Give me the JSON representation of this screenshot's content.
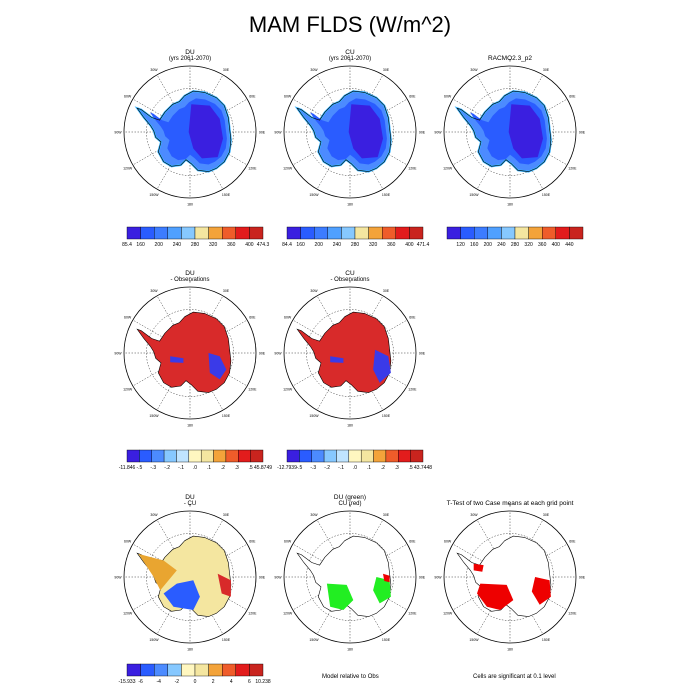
{
  "page": {
    "title": "MAM FLDS (W/m^2)"
  },
  "colors": {
    "ocean": "#ffffff",
    "antarctica_blue": "#2a5cff",
    "antarctica_deep": "#3a1fe0",
    "antarctica_light": "#4c8bff",
    "coast_cyan": "#39b4ff",
    "diff_red": "#d82a2a",
    "diff_blue": "#3a3ae8",
    "du_cu_yellow": "#f4e6a0",
    "du_cu_orange": "#e9a530",
    "sig_green": "#22ee22",
    "sig_red": "#ee0000"
  },
  "notes": {
    "model_relative": "Model relative to Obs",
    "cells_significant": "Cells are significant at 0.1 level"
  },
  "chart_data": [
    {
      "type": "heatmap",
      "id": "du",
      "title": "DU",
      "subtitle": "(yrs 2061-2070)",
      "colorbar": {
        "min_label": "85.4",
        "max_label": "474.3",
        "ticks": [
          "160",
          "200",
          "240",
          "280",
          "320",
          "360",
          "400"
        ],
        "colors": [
          "#3a1fe0",
          "#2a5cff",
          "#3c7cff",
          "#4fa0ff",
          "#86c8ff",
          "#f4e6a0",
          "#f3a33a",
          "#ef5c2a",
          "#e21c1c",
          "#c9241e"
        ]
      },
      "lon_labels": [
        "0",
        "30E",
        "60E",
        "90E",
        "120E",
        "150E",
        "180",
        "150W",
        "120W",
        "90W",
        "60W",
        "30W"
      ]
    },
    {
      "type": "heatmap",
      "id": "cu",
      "title": "CU",
      "subtitle": "(yrs 2061-2070)",
      "colorbar": {
        "min_label": "84.4",
        "max_label": "471.4",
        "ticks": [
          "160",
          "200",
          "240",
          "280",
          "320",
          "360",
          "400"
        ],
        "colors": [
          "#3a1fe0",
          "#2a5cff",
          "#3c7cff",
          "#4fa0ff",
          "#86c8ff",
          "#f4e6a0",
          "#f3a33a",
          "#ef5c2a",
          "#e21c1c",
          "#c9241e"
        ]
      },
      "lon_labels": [
        "0",
        "30E",
        "60E",
        "90E",
        "120E",
        "150E",
        "180",
        "150W",
        "120W",
        "90W",
        "60W",
        "30W"
      ]
    },
    {
      "type": "heatmap",
      "id": "racmo",
      "title": "RACMO2.3_p2",
      "subtitle": "",
      "colorbar": {
        "min_label": "",
        "max_label": "",
        "ticks": [
          "120",
          "160",
          "200",
          "240",
          "280",
          "320",
          "360",
          "400",
          "440"
        ],
        "colors": [
          "#3a1fe0",
          "#2a5cff",
          "#3c7cff",
          "#4fa0ff",
          "#86c8ff",
          "#f4e6a0",
          "#f3a33a",
          "#ef5c2a",
          "#e21c1c",
          "#c9241e"
        ]
      },
      "lon_labels": [
        "0",
        "30E",
        "60E",
        "90E",
        "120E",
        "150E",
        "180",
        "150W",
        "120W",
        "90W",
        "60W",
        "30W"
      ]
    },
    {
      "type": "heatmap",
      "id": "du_obs",
      "title": "DU",
      "subtitle": "- Observations",
      "colorbar": {
        "min_label": "-11.846",
        "max_label": "45.8749",
        "ticks": [
          "-.5",
          "-.3",
          "-.2",
          "-.1",
          ".0",
          ".1",
          ".2",
          ".3",
          ".5"
        ],
        "colors": [
          "#3a1fe0",
          "#2a5cff",
          "#4c8bff",
          "#86c8ff",
          "#bfe4ff",
          "#fff7c0",
          "#f4e6a0",
          "#f3a33a",
          "#ef5c2a",
          "#e21c1c",
          "#c9241e"
        ]
      },
      "lon_labels": [
        "0",
        "30E",
        "60E",
        "90E",
        "120E",
        "150E",
        "180",
        "150W",
        "120W",
        "90W",
        "60W",
        "30W"
      ]
    },
    {
      "type": "heatmap",
      "id": "cu_obs",
      "title": "CU",
      "subtitle": "- Observations",
      "colorbar": {
        "min_label": "-12.7939",
        "max_label": "43.7448",
        "ticks": [
          "-.5",
          "-.3",
          "-.2",
          "-.1",
          ".0",
          ".1",
          ".2",
          ".3",
          ".5"
        ],
        "colors": [
          "#3a1fe0",
          "#2a5cff",
          "#4c8bff",
          "#86c8ff",
          "#bfe4ff",
          "#fff7c0",
          "#f4e6a0",
          "#f3a33a",
          "#ef5c2a",
          "#e21c1c",
          "#c9241e"
        ]
      },
      "lon_labels": [
        "0",
        "30E",
        "60E",
        "90E",
        "120E",
        "150E",
        "180",
        "150W",
        "120W",
        "90W",
        "60W",
        "30W"
      ]
    },
    {
      "type": "heatmap",
      "id": "du_cu",
      "title": "DU",
      "subtitle": "- CU",
      "colorbar": {
        "min_label": "-15.933",
        "max_label": "10.238",
        "ticks": [
          "-6",
          "-4",
          "-2",
          "0",
          "2",
          "4",
          "6"
        ],
        "colors": [
          "#3a1fe0",
          "#2a5cff",
          "#4c8bff",
          "#86c8ff",
          "#fff7c0",
          "#f4e6a0",
          "#f3a33a",
          "#ef5c2a",
          "#e21c1c",
          "#c9241e"
        ]
      },
      "lon_labels": [
        "0",
        "30E",
        "60E",
        "90E",
        "120E",
        "150E",
        "180",
        "150W",
        "120W",
        "90W",
        "60W",
        "30W"
      ]
    },
    {
      "type": "heatmap",
      "id": "sig_obs",
      "title": "DU (green)",
      "subtitle": "CU (red)",
      "lon_labels": [
        "0",
        "30E",
        "60E",
        "90E",
        "120E",
        "150E",
        "180",
        "150W",
        "120W",
        "90W",
        "60W",
        "30W"
      ]
    },
    {
      "type": "heatmap",
      "id": "ttest",
      "title": "T-Test of two Case means at each grid point",
      "subtitle": "",
      "lon_labels": [
        "0",
        "30E",
        "60E",
        "90E",
        "120E",
        "150E",
        "180",
        "150W",
        "120W",
        "90W",
        "60W",
        "30W"
      ]
    }
  ]
}
